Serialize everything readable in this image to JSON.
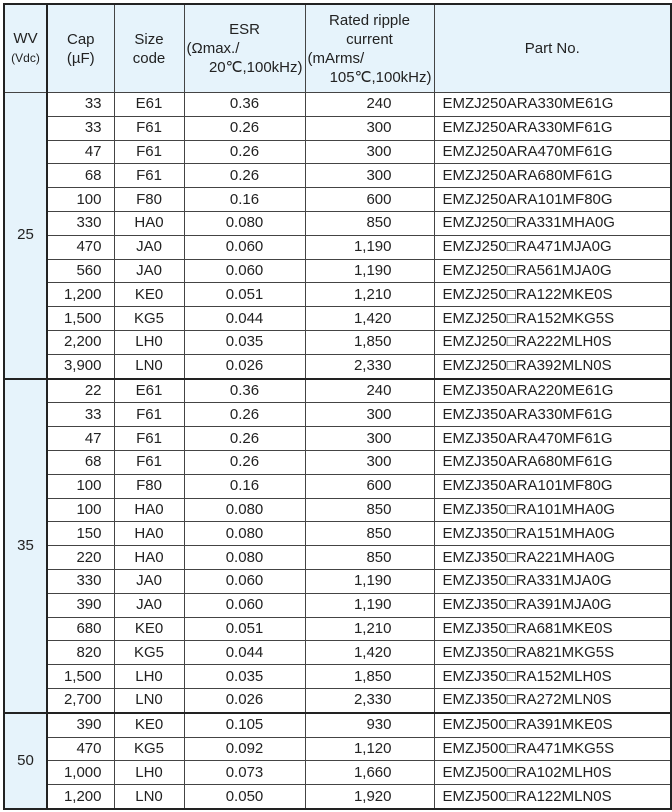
{
  "headers": {
    "wv": [
      "WV",
      "(Vdc)"
    ],
    "cap": [
      "Cap",
      "(µF)"
    ],
    "size": [
      "Size",
      "code"
    ],
    "esr": [
      "ESR",
      "(Ωmax./",
      "20℃,100kHz)"
    ],
    "ripple": [
      "Rated ripple",
      "current",
      "(mArms/",
      "105℃,100kHz)"
    ],
    "part": "Part No."
  },
  "groups": [
    {
      "wv": "25",
      "rows": [
        [
          "33",
          "E61",
          "0.36",
          "240",
          "EMZJ250ARA330ME61G"
        ],
        [
          "33",
          "F61",
          "0.26",
          "300",
          "EMZJ250ARA330MF61G"
        ],
        [
          "47",
          "F61",
          "0.26",
          "300",
          "EMZJ250ARA470MF61G"
        ],
        [
          "68",
          "F61",
          "0.26",
          "300",
          "EMZJ250ARA680MF61G"
        ],
        [
          "100",
          "F80",
          "0.16",
          "600",
          "EMZJ250ARA101MF80G"
        ],
        [
          "330",
          "HA0",
          "0.080",
          "850",
          "EMZJ250□RA331MHA0G"
        ],
        [
          "470",
          "JA0",
          "0.060",
          "1,190",
          "EMZJ250□RA471MJA0G"
        ],
        [
          "560",
          "JA0",
          "0.060",
          "1,190",
          "EMZJ250□RA561MJA0G"
        ],
        [
          "1,200",
          "KE0",
          "0.051",
          "1,210",
          "EMZJ250□RA122MKE0S"
        ],
        [
          "1,500",
          "KG5",
          "0.044",
          "1,420",
          "EMZJ250□RA152MKG5S"
        ],
        [
          "2,200",
          "LH0",
          "0.035",
          "1,850",
          "EMZJ250□RA222MLH0S"
        ],
        [
          "3,900",
          "LN0",
          "0.026",
          "2,330",
          "EMZJ250□RA392MLN0S"
        ]
      ]
    },
    {
      "wv": "35",
      "rows": [
        [
          "22",
          "E61",
          "0.36",
          "240",
          "EMZJ350ARA220ME61G"
        ],
        [
          "33",
          "F61",
          "0.26",
          "300",
          "EMZJ350ARA330MF61G"
        ],
        [
          "47",
          "F61",
          "0.26",
          "300",
          "EMZJ350ARA470MF61G"
        ],
        [
          "68",
          "F61",
          "0.26",
          "300",
          "EMZJ350ARA680MF61G"
        ],
        [
          "100",
          "F80",
          "0.16",
          "600",
          "EMZJ350ARA101MF80G"
        ],
        [
          "100",
          "HA0",
          "0.080",
          "850",
          "EMZJ350□RA101MHA0G"
        ],
        [
          "150",
          "HA0",
          "0.080",
          "850",
          "EMZJ350□RA151MHA0G"
        ],
        [
          "220",
          "HA0",
          "0.080",
          "850",
          "EMZJ350□RA221MHA0G"
        ],
        [
          "330",
          "JA0",
          "0.060",
          "1,190",
          "EMZJ350□RA331MJA0G"
        ],
        [
          "390",
          "JA0",
          "0.060",
          "1,190",
          "EMZJ350□RA391MJA0G"
        ],
        [
          "680",
          "KE0",
          "0.051",
          "1,210",
          "EMZJ350□RA681MKE0S"
        ],
        [
          "820",
          "KG5",
          "0.044",
          "1,420",
          "EMZJ350□RA821MKG5S"
        ],
        [
          "1,500",
          "LH0",
          "0.035",
          "1,850",
          "EMZJ350□RA152MLH0S"
        ],
        [
          "2,700",
          "LN0",
          "0.026",
          "2,330",
          "EMZJ350□RA272MLN0S"
        ]
      ]
    },
    {
      "wv": "50",
      "rows": [
        [
          "390",
          "KE0",
          "0.105",
          "930",
          "EMZJ500□RA391MKE0S"
        ],
        [
          "470",
          "KG5",
          "0.092",
          "1,120",
          "EMZJ500□RA471MKG5S"
        ],
        [
          "1,000",
          "LH0",
          "0.073",
          "1,660",
          "EMZJ500□RA102MLH0S"
        ],
        [
          "1,200",
          "LN0",
          "0.050",
          "1,920",
          "EMZJ500□RA122MLN0S"
        ]
      ]
    }
  ]
}
